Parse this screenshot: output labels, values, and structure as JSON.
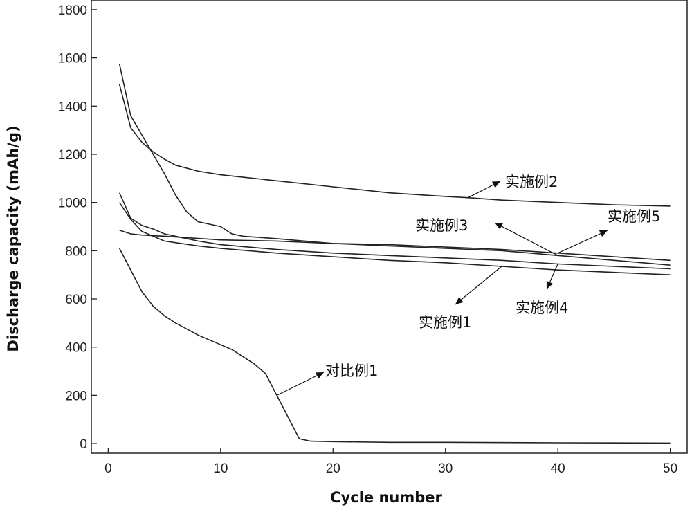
{
  "chart_data": {
    "type": "line",
    "title": "",
    "xlabel": "Cycle number",
    "ylabel": "Discharge capacity (mAh/g)",
    "xlim": [
      -1.5,
      51.5
    ],
    "ylim": [
      -40,
      1840
    ],
    "xticks": [
      0,
      10,
      20,
      30,
      40,
      50
    ],
    "yticks": [
      0,
      200,
      400,
      600,
      800,
      1000,
      1200,
      1400,
      1600,
      1800
    ],
    "grid": false,
    "legend": "none",
    "series": [
      {
        "name": "实施例2",
        "x": [
          1,
          2,
          3,
          4,
          5,
          6,
          8,
          10,
          12,
          15,
          20,
          25,
          30,
          32,
          35,
          40,
          45,
          50
        ],
        "y": [
          1490,
          1310,
          1250,
          1210,
          1180,
          1155,
          1130,
          1115,
          1105,
          1090,
          1065,
          1040,
          1025,
          1020,
          1010,
          1000,
          990,
          985
        ]
      },
      {
        "name": "实施例3",
        "x": [
          1,
          2,
          3,
          4,
          5,
          6,
          7,
          8,
          10,
          11,
          12,
          15,
          20,
          25,
          30,
          35,
          40,
          45,
          50
        ],
        "y": [
          1575,
          1360,
          1280,
          1200,
          1120,
          1030,
          960,
          920,
          900,
          870,
          860,
          850,
          830,
          820,
          810,
          800,
          780,
          760,
          740
        ]
      },
      {
        "name": "实施例5",
        "x": [
          1,
          2,
          3,
          5,
          10,
          15,
          20,
          25,
          30,
          35,
          40,
          45,
          50
        ],
        "y": [
          885,
          870,
          865,
          860,
          845,
          840,
          830,
          825,
          815,
          805,
          790,
          775,
          760
        ]
      },
      {
        "name": "实施例4",
        "x": [
          1,
          2,
          3,
          4,
          5,
          8,
          10,
          15,
          20,
          25,
          30,
          35,
          40,
          45,
          50
        ],
        "y": [
          1040,
          935,
          905,
          890,
          870,
          840,
          825,
          805,
          790,
          780,
          770,
          760,
          745,
          735,
          725
        ]
      },
      {
        "name": "实施例1",
        "x": [
          1,
          2,
          3,
          4,
          5,
          8,
          10,
          15,
          20,
          25,
          30,
          35,
          40,
          45,
          50
        ],
        "y": [
          1000,
          930,
          880,
          860,
          840,
          820,
          810,
          790,
          775,
          760,
          750,
          735,
          720,
          710,
          700
        ]
      },
      {
        "name": "对比例1",
        "x": [
          1,
          2,
          3,
          4,
          5,
          6,
          7,
          8,
          9,
          10,
          11,
          12,
          13,
          14,
          15,
          16,
          17,
          18,
          20,
          25,
          30,
          40,
          50
        ],
        "y": [
          810,
          720,
          630,
          570,
          530,
          500,
          475,
          450,
          430,
          410,
          390,
          360,
          330,
          290,
          200,
          110,
          20,
          10,
          8,
          5,
          5,
          3,
          2
        ]
      }
    ],
    "annotations": [
      {
        "text": "实施例2",
        "series": "实施例2"
      },
      {
        "text": "实施例3",
        "series": "实施例3"
      },
      {
        "text": "实施例5",
        "series": "实施例5"
      },
      {
        "text": "实施例1",
        "series": "实施例1"
      },
      {
        "text": "实施例4",
        "series": "实施例4"
      },
      {
        "text": "对比例1",
        "series": "对比例1"
      }
    ]
  }
}
